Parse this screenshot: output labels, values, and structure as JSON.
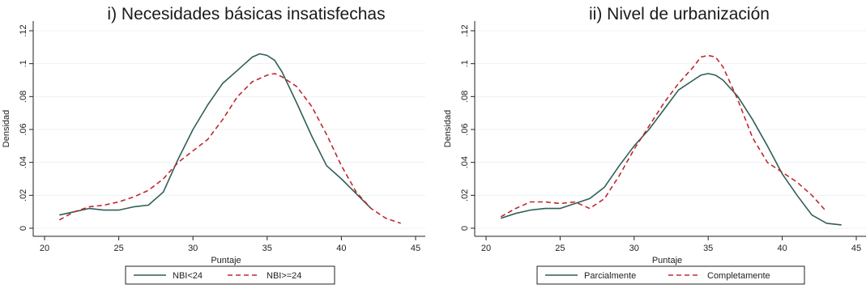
{
  "chart_data": [
    {
      "type": "line",
      "title": "i) Necesidades básicas insatisfechas",
      "xlabel": "Puntaje",
      "ylabel": "Densidad",
      "xlim": [
        20,
        45
      ],
      "ylim": [
        0,
        0.12
      ],
      "xticks": [
        "20",
        "25",
        "30",
        "35",
        "40",
        "45"
      ],
      "yticks": [
        "0",
        ".02",
        ".04",
        ".06",
        ".08",
        ".1",
        ".12"
      ],
      "grid": true,
      "legend_position": "bottom",
      "series": [
        {
          "name": "NBI<24",
          "color": "#2f5f57",
          "dash": "solid",
          "x": [
            21,
            22,
            23,
            24,
            25,
            26,
            27,
            28,
            29,
            30,
            31,
            32,
            33,
            33.5,
            34,
            34.5,
            35,
            35.5,
            36,
            37,
            38,
            39,
            40,
            41,
            42
          ],
          "y": [
            0.008,
            0.01,
            0.012,
            0.011,
            0.011,
            0.013,
            0.014,
            0.022,
            0.042,
            0.06,
            0.075,
            0.088,
            0.096,
            0.1,
            0.104,
            0.106,
            0.105,
            0.102,
            0.095,
            0.076,
            0.056,
            0.038,
            0.03,
            0.021,
            0.012
          ]
        },
        {
          "name": "NBI>=24",
          "color": "#c0282e",
          "dash": "dashed",
          "x": [
            21,
            22,
            23,
            24,
            25,
            26,
            27,
            28,
            29,
            30,
            31,
            32,
            33,
            34,
            35,
            35.5,
            36,
            37,
            38,
            39,
            40,
            41,
            42,
            43,
            44
          ],
          "y": [
            0.005,
            0.01,
            0.013,
            0.014,
            0.016,
            0.019,
            0.023,
            0.03,
            0.04,
            0.047,
            0.054,
            0.066,
            0.08,
            0.089,
            0.093,
            0.094,
            0.092,
            0.086,
            0.074,
            0.057,
            0.038,
            0.022,
            0.012,
            0.006,
            0.003
          ]
        }
      ]
    },
    {
      "type": "line",
      "title": "ii) Nivel de urbanización",
      "xlabel": "Puntaje",
      "ylabel": "Densidad",
      "xlim": [
        20,
        45
      ],
      "ylim": [
        0,
        0.12
      ],
      "xticks": [
        "20",
        "25",
        "30",
        "35",
        "40",
        "45"
      ],
      "yticks": [
        "0",
        ".02",
        ".04",
        ".06",
        ".08",
        ".1",
        ".12"
      ],
      "grid": true,
      "legend_position": "bottom",
      "series": [
        {
          "name": "Parcialmente",
          "color": "#2f5f57",
          "dash": "solid",
          "x": [
            21,
            22,
            23,
            24,
            25,
            26,
            27,
            28,
            29,
            30,
            31,
            32,
            33,
            34,
            34.5,
            35,
            35.5,
            36,
            37,
            38,
            39,
            40,
            41,
            42,
            43,
            44
          ],
          "y": [
            0.006,
            0.009,
            0.011,
            0.012,
            0.012,
            0.015,
            0.018,
            0.025,
            0.038,
            0.05,
            0.06,
            0.072,
            0.084,
            0.09,
            0.093,
            0.094,
            0.093,
            0.09,
            0.08,
            0.066,
            0.05,
            0.033,
            0.02,
            0.008,
            0.003,
            0.002
          ]
        },
        {
          "name": "Completamente",
          "color": "#c0282e",
          "dash": "dashed",
          "x": [
            21,
            22,
            23,
            24,
            25,
            26,
            27,
            28,
            29,
            30,
            31,
            32,
            33,
            34,
            34.5,
            35,
            35.5,
            36,
            37,
            38,
            39,
            40,
            41,
            42,
            43
          ],
          "y": [
            0.007,
            0.012,
            0.016,
            0.016,
            0.015,
            0.016,
            0.012,
            0.018,
            0.032,
            0.048,
            0.062,
            0.076,
            0.088,
            0.098,
            0.104,
            0.105,
            0.104,
            0.098,
            0.078,
            0.055,
            0.04,
            0.034,
            0.028,
            0.02,
            0.01
          ]
        }
      ]
    }
  ]
}
